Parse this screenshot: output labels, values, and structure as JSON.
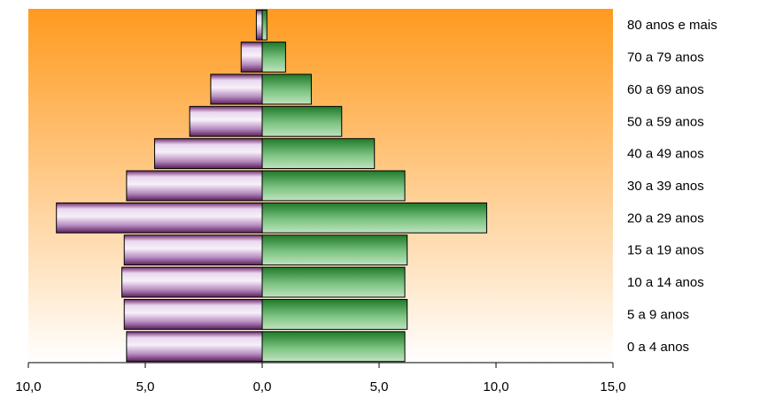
{
  "chart_data": {
    "type": "bar",
    "orientation": "horizontal",
    "title": "",
    "xlabel": "",
    "ylabel": "",
    "categories": [
      "0 a 4 anos",
      "5 a 9 anos",
      "10 a 14 anos",
      "15 a 19 anos",
      "20 a 29 anos",
      "30 a 39 anos",
      "40 a 49 anos",
      "50 a 59 anos",
      "60 a 69 anos",
      "70 a 79 anos",
      "80 anos e mais"
    ],
    "series": [
      {
        "values": [
          5.8,
          5.9,
          6.0,
          5.9,
          8.8,
          5.8,
          4.6,
          3.1,
          2.2,
          0.9,
          0.25
        ],
        "color": "#9b6a9f"
      },
      {
        "values": [
          6.1,
          6.2,
          6.1,
          6.2,
          9.6,
          6.1,
          4.8,
          3.4,
          2.1,
          1.0,
          0.2
        ],
        "color": "#3a9a3a"
      }
    ],
    "xlim": [
      -10,
      15
    ],
    "xticks": [
      -10,
      -5,
      0,
      5,
      10,
      15
    ],
    "xtick_labels": [
      "10,0",
      "5,0",
      "0,0",
      "5,0",
      "10,0",
      "15,0"
    ],
    "grid": false,
    "legend": "none",
    "background_gradient": [
      "#ff9a1e",
      "#ffffff"
    ]
  }
}
